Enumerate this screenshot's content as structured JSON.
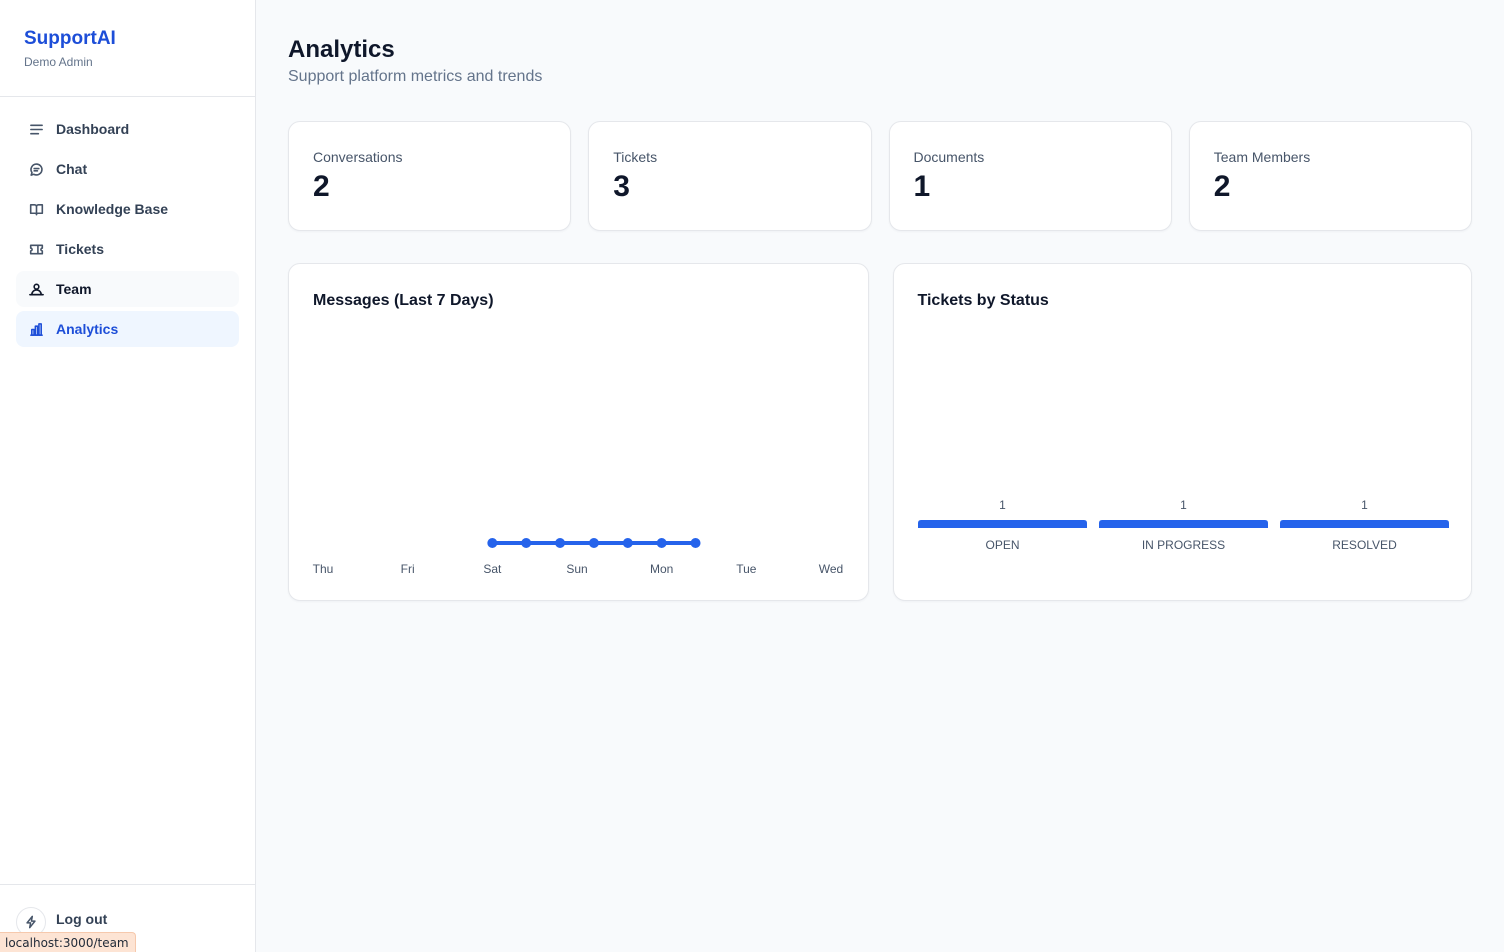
{
  "brand": {
    "name": "SupportAI",
    "subtitle": "Demo Admin"
  },
  "nav": [
    {
      "label": "Dashboard",
      "icon": "menu-lines-icon",
      "state": "normal"
    },
    {
      "label": "Chat",
      "icon": "chat-bubble-icon",
      "state": "normal"
    },
    {
      "label": "Knowledge Base",
      "icon": "book-icon",
      "state": "normal"
    },
    {
      "label": "Tickets",
      "icon": "ticket-icon",
      "state": "normal"
    },
    {
      "label": "Team",
      "icon": "team-icon",
      "state": "hover"
    },
    {
      "label": "Analytics",
      "icon": "bar-chart-icon",
      "state": "active"
    }
  ],
  "footer": {
    "logout_label": "Log out",
    "status_url": "localhost:3000/team"
  },
  "page": {
    "title": "Analytics",
    "subtitle": "Support platform metrics and trends"
  },
  "stats": [
    {
      "label": "Conversations",
      "value": "2"
    },
    {
      "label": "Tickets",
      "value": "3"
    },
    {
      "label": "Documents",
      "value": "1"
    },
    {
      "label": "Team Members",
      "value": "2"
    }
  ],
  "colors": {
    "accent": "#2563eb",
    "active_bg": "#eff6ff",
    "brand": "#1d4ed8"
  },
  "chart_data": [
    {
      "type": "line",
      "title": "Messages (Last 7 Days)",
      "categories": [
        "Thu",
        "Fri",
        "Sat",
        "Sun",
        "Mon",
        "Tue",
        "Wed"
      ],
      "x_start": 0,
      "x_end": 6,
      "points": [
        {
          "x": 2.0,
          "y": 0
        },
        {
          "x": 2.4,
          "y": 0
        },
        {
          "x": 2.8,
          "y": 0
        },
        {
          "x": 3.2,
          "y": 0
        },
        {
          "x": 3.6,
          "y": 0
        },
        {
          "x": 4.0,
          "y": 0
        },
        {
          "x": 4.4,
          "y": 0
        }
      ],
      "ylim": [
        0,
        1
      ],
      "grid": false,
      "color": "#2563eb"
    },
    {
      "type": "bar",
      "title": "Tickets by Status",
      "categories": [
        "OPEN",
        "IN PROGRESS",
        "RESOLVED"
      ],
      "values": [
        1,
        1,
        1
      ],
      "data_labels": [
        "1",
        "1",
        "1"
      ],
      "ylim": [
        0,
        1
      ],
      "grid": false,
      "color": "#2563eb"
    }
  ]
}
